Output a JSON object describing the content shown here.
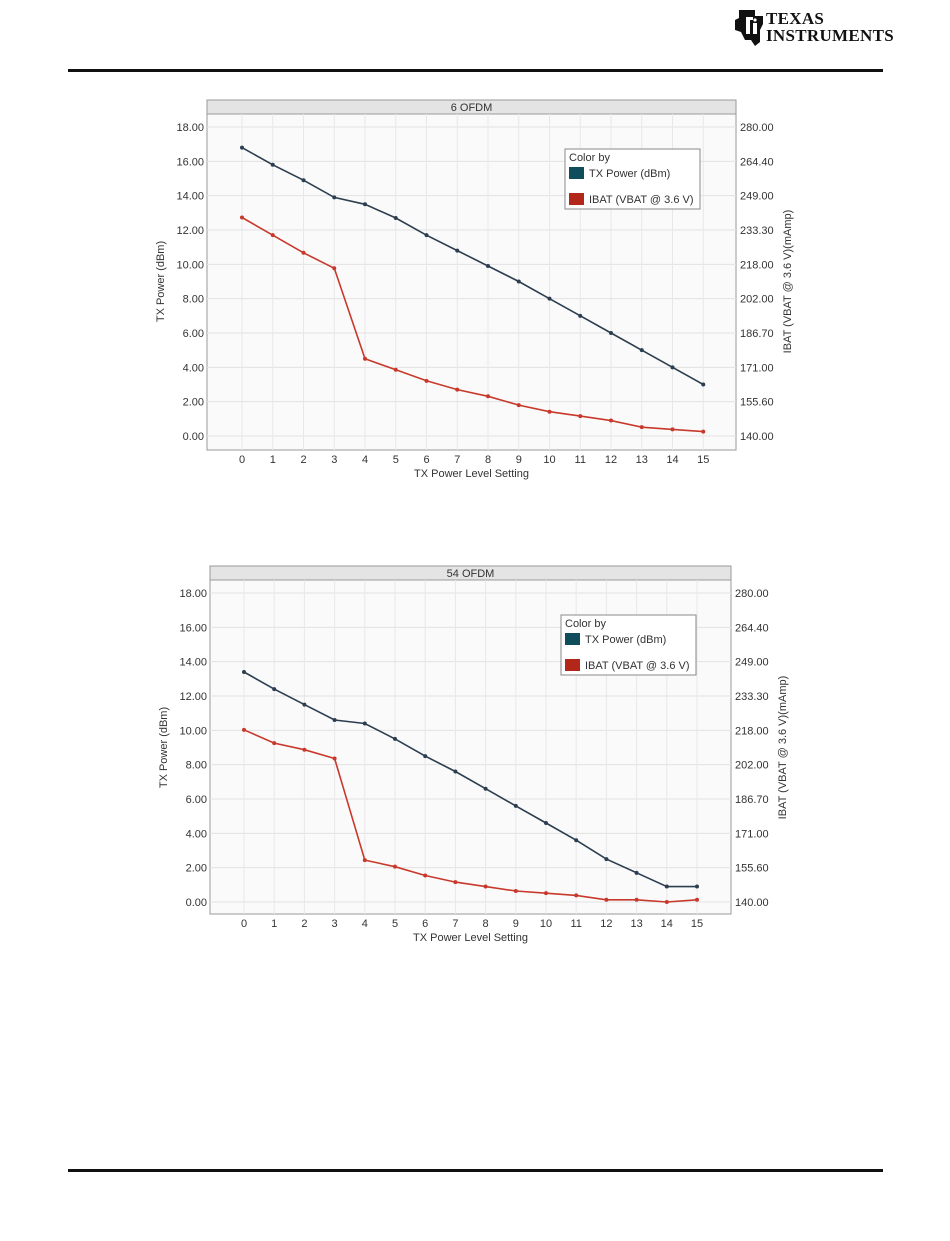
{
  "header": {
    "brand_line1": "TEXAS",
    "brand_line2": "INSTRUMENTS"
  },
  "chart_data": [
    {
      "type": "line",
      "title": "6 OFDM",
      "xlabel": "TX Power Level Setting",
      "ylabel": "TX Power (dBm)",
      "y2label": "IBAT (VBAT @ 3.6 V)(mAmp)",
      "x": [
        0,
        1,
        2,
        3,
        4,
        5,
        6,
        7,
        8,
        9,
        10,
        11,
        12,
        13,
        14,
        15
      ],
      "xticks": [
        "0",
        "1",
        "2",
        "3",
        "4",
        "5",
        "6",
        "7",
        "8",
        "9",
        "10",
        "11",
        "12",
        "13",
        "14",
        "15"
      ],
      "ylim": [
        0,
        18
      ],
      "yticks": [
        "0.00",
        "2.00",
        "4.00",
        "6.00",
        "8.00",
        "10.00",
        "12.00",
        "14.00",
        "16.00",
        "18.00"
      ],
      "y2lim": [
        140,
        280
      ],
      "y2ticks": [
        "140.00",
        "155.60",
        "171.00",
        "186.70",
        "202.00",
        "218.00",
        "233.30",
        "249.00",
        "264.40",
        "280.00"
      ],
      "legend_title": "Color by",
      "legend_position": "top-right",
      "grid": true,
      "series": [
        {
          "name": "TX Power (dBm)",
          "axis": "left",
          "color": "#2c3e50",
          "values": [
            16.8,
            15.8,
            14.9,
            13.9,
            13.5,
            12.7,
            11.7,
            10.8,
            9.9,
            9.0,
            8.0,
            7.0,
            6.0,
            5.0,
            4.0,
            3.0
          ]
        },
        {
          "name": "IBAT (VBAT @ 3.6 V)",
          "axis": "right",
          "color": "#c8392b",
          "values": [
            239,
            231,
            223,
            216,
            175,
            170,
            165,
            161,
            158,
            154,
            151,
            149,
            147,
            144,
            143,
            142
          ]
        }
      ]
    },
    {
      "type": "line",
      "title": "54 OFDM",
      "xlabel": "TX Power Level Setting",
      "ylabel": "TX Power (dBm)",
      "y2label": "IBAT (VBAT @ 3.6 V)(mAmp)",
      "x": [
        0,
        1,
        2,
        3,
        4,
        5,
        6,
        7,
        8,
        9,
        10,
        11,
        12,
        13,
        14,
        15
      ],
      "xticks": [
        "0",
        "1",
        "2",
        "3",
        "4",
        "5",
        "6",
        "7",
        "8",
        "9",
        "10",
        "11",
        "12",
        "13",
        "14",
        "15"
      ],
      "ylim": [
        0,
        18
      ],
      "yticks": [
        "0.00",
        "2.00",
        "4.00",
        "6.00",
        "8.00",
        "10.00",
        "12.00",
        "14.00",
        "16.00",
        "18.00"
      ],
      "y2lim": [
        140,
        280
      ],
      "y2ticks": [
        "140.00",
        "155.60",
        "171.00",
        "186.70",
        "202.00",
        "218.00",
        "233.30",
        "249.00",
        "264.40",
        "280.00"
      ],
      "legend_title": "Color by",
      "legend_position": "top-right",
      "grid": true,
      "series": [
        {
          "name": "TX Power (dBm)",
          "axis": "left",
          "color": "#2c3e50",
          "values": [
            13.4,
            12.4,
            11.5,
            10.6,
            10.4,
            9.5,
            8.5,
            7.6,
            6.6,
            5.6,
            4.6,
            3.6,
            2.5,
            1.7,
            0.9,
            0.9
          ]
        },
        {
          "name": "IBAT (VBAT @ 3.6 V)",
          "axis": "right",
          "color": "#c8392b",
          "values": [
            218,
            212,
            209,
            205,
            159,
            156,
            152,
            149,
            147,
            145,
            144,
            143,
            141,
            141,
            140,
            141
          ]
        }
      ]
    }
  ]
}
